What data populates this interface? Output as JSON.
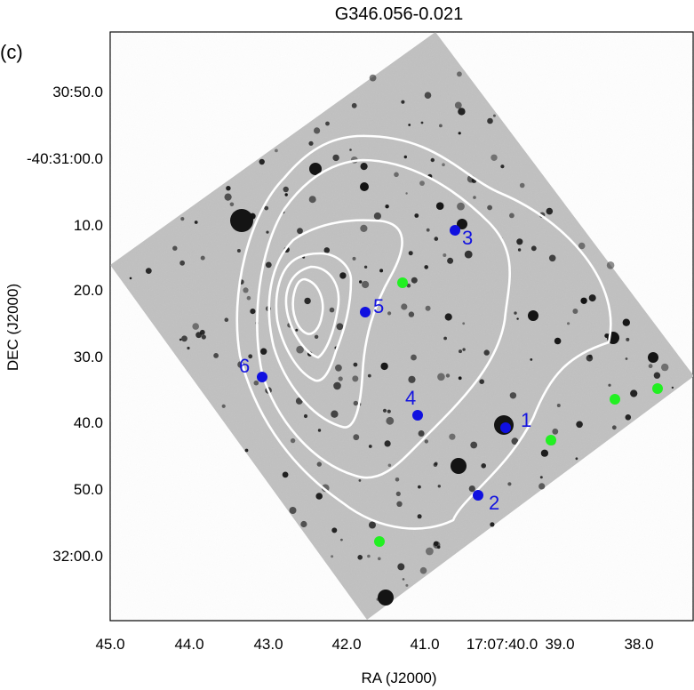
{
  "figure": {
    "title": "G346.056-0.021",
    "panel_label": "(c)",
    "xlabel": "RA (J2000)",
    "ylabel": "DEC (J2000)",
    "x_ticks": [
      "45.0",
      "44.0",
      "43.0",
      "42.0",
      "41.0",
      "17:07:40.0",
      "39.0",
      "38.0"
    ],
    "y_ticks": [
      "30:50.0",
      "-40:31:00.0",
      "10.0",
      "20.0",
      "30.0",
      "40.0",
      "50.0",
      "32:00.0"
    ]
  },
  "sources": [
    {
      "id": "1",
      "label": "1"
    },
    {
      "id": "2",
      "label": "2"
    },
    {
      "id": "3",
      "label": "3"
    },
    {
      "id": "4",
      "label": "4"
    },
    {
      "id": "5",
      "label": "5"
    },
    {
      "id": "6",
      "label": "6"
    }
  ],
  "colors": {
    "background": "#ffffff",
    "image_gray": "#bdbdbd",
    "contour": "#ffffff",
    "source_marker": "#1010e0",
    "green_marker": "#22f022"
  }
}
